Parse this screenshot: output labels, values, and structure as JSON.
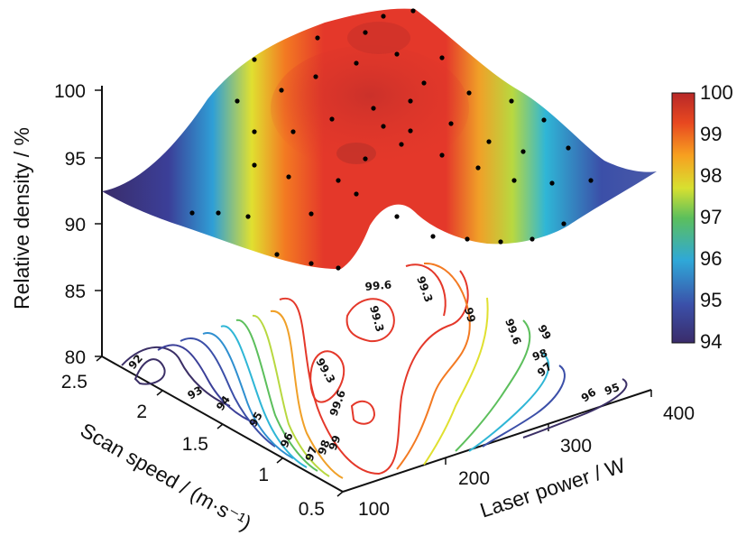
{
  "chart_data": {
    "type": "surface",
    "z_axis": {
      "label": "Relative density / %",
      "ticks": [
        "100",
        "95",
        "90",
        "85",
        "80"
      ],
      "range": [
        80,
        100
      ]
    },
    "y_axis": {
      "label": "Scan speed / (m·s⁻¹)",
      "ticks": [
        "2.5",
        "2",
        "1.5",
        "1",
        "0.5"
      ],
      "range": [
        0.5,
        2.5
      ]
    },
    "x_axis": {
      "label": "Laser power / W",
      "ticks": [
        "100",
        "200",
        "300",
        "400"
      ],
      "range": [
        100,
        400
      ]
    },
    "colorbar": {
      "ticks": [
        "100",
        "99",
        "98",
        "97",
        "96",
        "95",
        "94"
      ],
      "range": [
        94,
        100
      ]
    },
    "contour_labels": [
      "92",
      "93",
      "94",
      "95",
      "96",
      "97",
      "98",
      "99",
      "99.3",
      "99.6",
      "99.3",
      "99.6",
      "99",
      "99.3",
      "99.6",
      "99",
      "98",
      "97",
      "96",
      "95"
    ],
    "colors": {
      "low": "#3b2f66",
      "mid": "#f0e020",
      "high": "#e03020"
    }
  }
}
